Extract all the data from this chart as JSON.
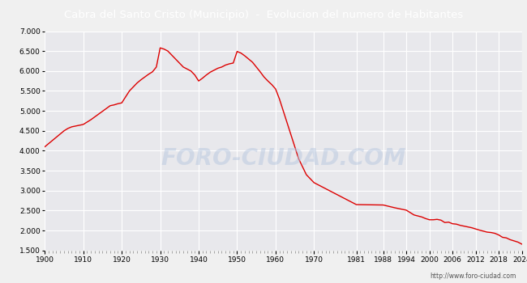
{
  "title": "Cabra del Santo Cristo (Municipio)  -  Evolucion del numero de Habitantes",
  "title_bg": "#4a8fd4",
  "title_color": "white",
  "fig_bg": "#f0f0f0",
  "plot_bg": "#e8e8ec",
  "line_color": "#dd0000",
  "watermark": "FORO-CIUDAD.COM",
  "url": "http://www.foro-ciudad.com",
  "years": [
    1900,
    1901,
    1902,
    1903,
    1904,
    1905,
    1906,
    1907,
    1908,
    1909,
    1910,
    1911,
    1912,
    1913,
    1914,
    1915,
    1916,
    1917,
    1918,
    1919,
    1920,
    1921,
    1922,
    1923,
    1924,
    1925,
    1926,
    1927,
    1928,
    1929,
    1930,
    1931,
    1932,
    1933,
    1934,
    1935,
    1936,
    1937,
    1938,
    1939,
    1940,
    1941,
    1942,
    1943,
    1944,
    1945,
    1946,
    1947,
    1948,
    1949,
    1950,
    1951,
    1952,
    1953,
    1954,
    1955,
    1956,
    1957,
    1958,
    1959,
    1960,
    1961,
    1962,
    1963,
    1964,
    1965,
    1966,
    1967,
    1968,
    1969,
    1970,
    1981,
    1988,
    1991,
    1994,
    1996,
    1998,
    1999,
    2000,
    2001,
    2002,
    2003,
    2004,
    2005,
    2006,
    2007,
    2008,
    2009,
    2010,
    2011,
    2012,
    2013,
    2014,
    2015,
    2016,
    2017,
    2018,
    2019,
    2020,
    2021,
    2022,
    2023,
    2024
  ],
  "population": [
    4100,
    4180,
    4260,
    4340,
    4420,
    4500,
    4560,
    4600,
    4620,
    4640,
    4660,
    4720,
    4780,
    4850,
    4920,
    4990,
    5060,
    5130,
    5150,
    5180,
    5200,
    5350,
    5500,
    5600,
    5700,
    5780,
    5850,
    5920,
    5980,
    6100,
    6580,
    6550,
    6500,
    6400,
    6300,
    6200,
    6100,
    6050,
    6000,
    5900,
    5750,
    5820,
    5900,
    5970,
    6020,
    6070,
    6100,
    6150,
    6180,
    6200,
    6490,
    6450,
    6380,
    6300,
    6220,
    6100,
    5980,
    5850,
    5750,
    5660,
    5550,
    5300,
    5000,
    4700,
    4400,
    4100,
    3800,
    3600,
    3400,
    3300,
    3200,
    2650,
    2640,
    2570,
    2510,
    2390,
    2340,
    2300,
    2270,
    2270,
    2280,
    2260,
    2200,
    2210,
    2170,
    2160,
    2130,
    2110,
    2090,
    2070,
    2040,
    2010,
    1985,
    1960,
    1950,
    1930,
    1890,
    1830,
    1815,
    1770,
    1740,
    1710,
    1660
  ],
  "xtick_labels": [
    "1900",
    "1910",
    "1920",
    "1930",
    "1940",
    "1950",
    "1960",
    "1970",
    "1981",
    "1988",
    "1994",
    "2000",
    "2006",
    "2012",
    "2018",
    "2024"
  ],
  "xtick_positions": [
    1900,
    1910,
    1920,
    1930,
    1940,
    1950,
    1960,
    1970,
    1981,
    1988,
    1994,
    2000,
    2006,
    2012,
    2018,
    2024
  ],
  "ylim": [
    1500,
    7000
  ],
  "ytick_positions": [
    1500,
    2000,
    2500,
    3000,
    3500,
    4000,
    4500,
    5000,
    5500,
    6000,
    6500,
    7000
  ],
  "ytick_labels": [
    "1.500",
    "2.000",
    "2.500",
    "3.000",
    "3.500",
    "4.000",
    "4.500",
    "5.000",
    "5.500",
    "6.000",
    "6.500",
    "7.000"
  ]
}
